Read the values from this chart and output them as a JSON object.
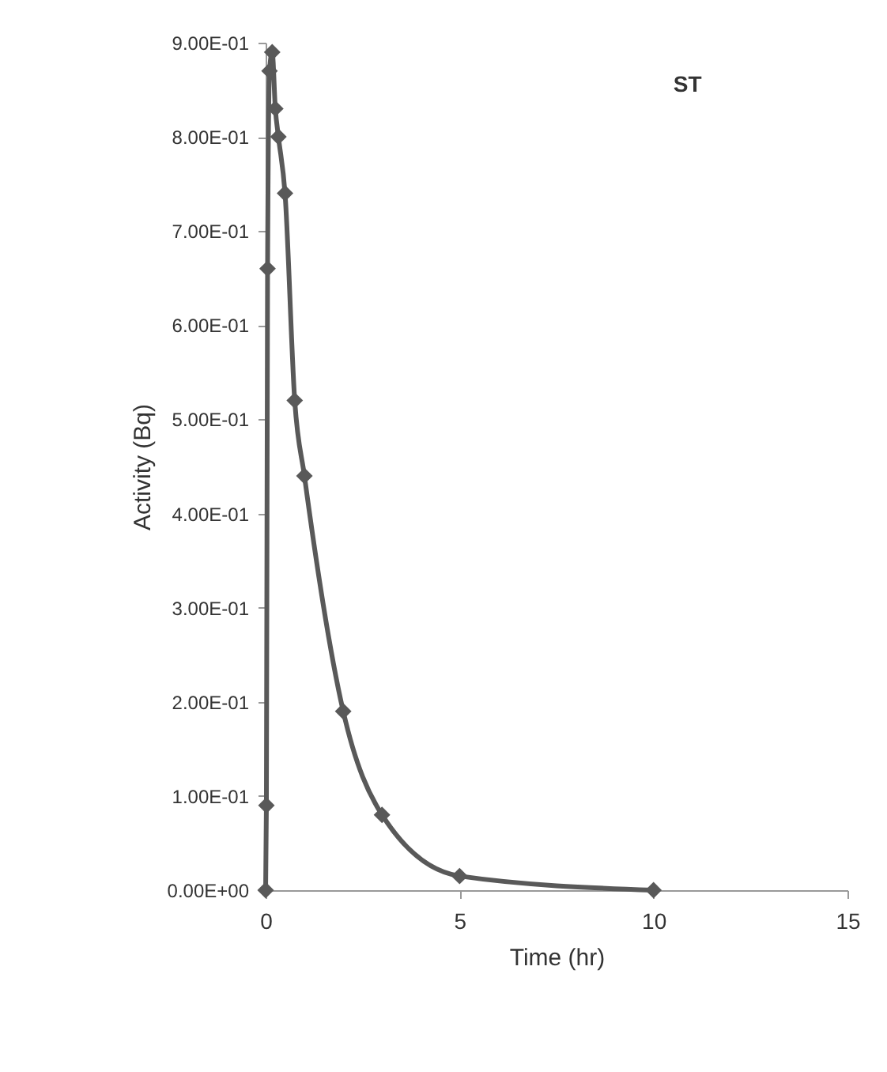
{
  "chart_data": {
    "type": "line",
    "title": "ST",
    "xlabel": "Time (hr)",
    "ylabel": "Activity (Bq)",
    "x": [
      0,
      0.02,
      0.05,
      0.1,
      0.17,
      0.25,
      0.33,
      0.5,
      0.75,
      1,
      2,
      3,
      5,
      10
    ],
    "series": [
      {
        "color": "#595959",
        "values": [
          0,
          0.09,
          0.66,
          0.87,
          0.89,
          0.83,
          0.8,
          0.74,
          0.52,
          0.44,
          0.19,
          0.08,
          0.015,
          0
        ]
      }
    ],
    "xlim": [
      0,
      15
    ],
    "xticks": [
      0,
      5,
      10,
      15
    ],
    "ylim": [
      0,
      0.9
    ],
    "yticks": [
      {
        "value": 0,
        "label": "0.00E+00"
      },
      {
        "value": 0.1,
        "label": "1.00E-01"
      },
      {
        "value": 0.2,
        "label": "2.00E-01"
      },
      {
        "value": 0.3,
        "label": "3.00E-01"
      },
      {
        "value": 0.4,
        "label": "4.00E-01"
      },
      {
        "value": 0.5,
        "label": "5.00E-01"
      },
      {
        "value": 0.6,
        "label": "6.00E-01"
      },
      {
        "value": 0.7,
        "label": "7.00E-01"
      },
      {
        "value": 0.8,
        "label": "8.00E-01"
      },
      {
        "value": 0.9,
        "label": "9.00E-01"
      }
    ],
    "marker": "diamond",
    "line_style": "solid",
    "grid": false
  }
}
